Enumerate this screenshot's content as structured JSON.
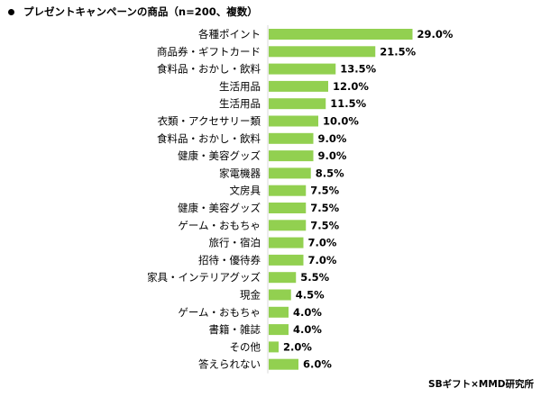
{
  "chart_data": {
    "type": "bar",
    "orientation": "horizontal",
    "title": "プレゼントキャンペーンの商品（n=200、複数）",
    "categories": [
      "各種ポイント",
      "商品券・ギフトカード",
      "食料品・おかし・飲料",
      "生活用品",
      "生活用品",
      "衣類・アクセサリー類",
      "食料品・おかし・飲料",
      "健康・美容グッズ",
      "家電機器",
      "文房具",
      "健康・美容グッズ",
      "ゲーム・おもちゃ",
      "旅行・宿泊",
      "招待・優待券",
      "家具・インテリアグッズ",
      "現金",
      "ゲーム・おもちゃ",
      "書籍・雑誌",
      "その他",
      "答えられない"
    ],
    "values": [
      29.0,
      21.5,
      13.5,
      12.0,
      11.5,
      10.0,
      9.0,
      9.0,
      8.5,
      7.5,
      7.5,
      7.5,
      7.0,
      7.0,
      5.5,
      4.5,
      4.0,
      4.0,
      2.0,
      6.0
    ],
    "value_labels": [
      "29.0%",
      "21.5%",
      "13.5%",
      "12.0%",
      "11.5%",
      "10.0%",
      "9.0%",
      "9.0%",
      "8.5%",
      "7.5%",
      "7.5%",
      "7.5%",
      "7.0%",
      "7.0%",
      "5.5%",
      "4.5%",
      "4.0%",
      "4.0%",
      "2.0%",
      "6.0%"
    ],
    "unit": "%",
    "grid": false,
    "legend": false,
    "bar_color": "#92d050"
  },
  "source": "SBギフト×MMD研究所"
}
